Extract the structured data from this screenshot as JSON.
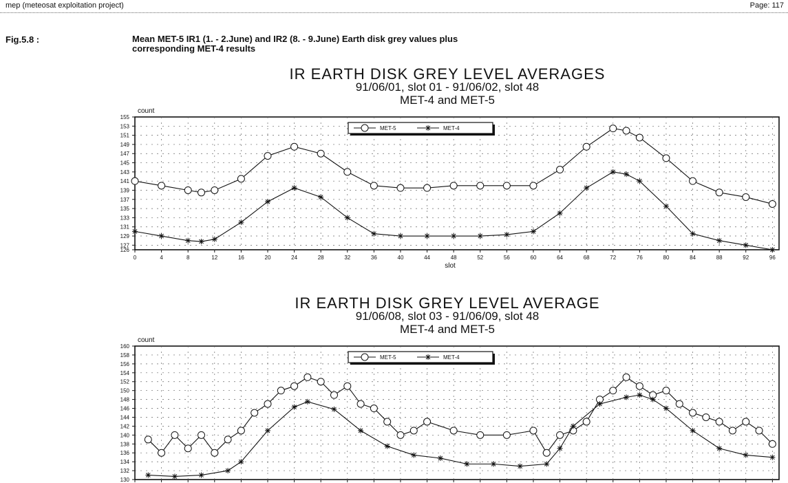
{
  "header": {
    "left": "mep (meteosat exploitation project)",
    "right": "Page: 117"
  },
  "figure": {
    "number": "Fig.5.8 :",
    "caption_line1": "Mean MET-5 IR1 (1. - 2.June) and IR2 (8. - 9.June) Earth disk grey values plus",
    "caption_line2": "corresponding MET-4 results"
  },
  "colors": {
    "ink": "#111111",
    "grid": "#666666"
  },
  "chart_data": [
    {
      "type": "line",
      "title": "IR EARTH DISK GREY LEVEL AVERAGES",
      "subtitle": "91/06/01, slot 01 - 91/06/02, slot 48",
      "subtitle2": "MET-4 and MET-5",
      "ylabel": "count",
      "xlabel": "slot",
      "xlim": [
        0,
        97
      ],
      "ylim": [
        126,
        155
      ],
      "xticks": [
        0,
        4,
        8,
        12,
        16,
        20,
        24,
        28,
        32,
        36,
        40,
        44,
        48,
        52,
        56,
        60,
        64,
        68,
        72,
        76,
        80,
        84,
        88,
        92,
        96
      ],
      "yticks": [
        126,
        127,
        129,
        131,
        133,
        135,
        137,
        139,
        141,
        143,
        145,
        147,
        149,
        151,
        153,
        155
      ],
      "grid": true,
      "legend_position": "top-center",
      "series": [
        {
          "name": "MET-5",
          "marker": "circle",
          "x": [
            0,
            4,
            8,
            10,
            12,
            16,
            20,
            24,
            28,
            32,
            36,
            40,
            44,
            48,
            52,
            56,
            60,
            64,
            68,
            72,
            74,
            76,
            80,
            84,
            88,
            92,
            96
          ],
          "y": [
            141,
            140,
            139,
            138.5,
            139,
            141.5,
            146.5,
            148.5,
            147,
            143,
            140,
            139.5,
            139.5,
            140,
            140,
            140,
            140,
            143.5,
            148.5,
            152.5,
            152,
            150.5,
            146,
            141,
            138.5,
            137.5,
            136
          ]
        },
        {
          "name": "MET-4",
          "marker": "star",
          "x": [
            0,
            4,
            8,
            10,
            12,
            16,
            20,
            24,
            28,
            32,
            36,
            40,
            44,
            48,
            52,
            56,
            60,
            64,
            68,
            72,
            74,
            76,
            80,
            84,
            88,
            92,
            96
          ],
          "y": [
            130,
            129,
            128,
            127.8,
            128.3,
            132,
            136.5,
            139.5,
            137.5,
            133,
            129.5,
            129,
            129,
            129,
            129,
            129.3,
            130,
            134,
            139.5,
            143,
            142.5,
            141,
            135.5,
            129.5,
            128,
            127,
            126
          ]
        }
      ]
    },
    {
      "type": "line",
      "title": "IR EARTH DISK GREY LEVEL AVERAGE",
      "subtitle": "91/06/08, slot 03 - 91/06/09, slot 48",
      "subtitle2": "MET-4 and MET-5",
      "ylabel": "count",
      "xlabel": "",
      "xlim": [
        0,
        97
      ],
      "ylim": [
        130,
        160
      ],
      "yticks": [
        130,
        132,
        134,
        136,
        138,
        140,
        142,
        144,
        146,
        148,
        150,
        152,
        154,
        156,
        158,
        160
      ],
      "grid": true,
      "legend_position": "top-center",
      "series": [
        {
          "name": "MET-5",
          "marker": "circle",
          "x": [
            2,
            4,
            6,
            8,
            10,
            12,
            14,
            16,
            18,
            20,
            22,
            24,
            26,
            28,
            30,
            32,
            34,
            36,
            38,
            40,
            42,
            44,
            48,
            52,
            56,
            60,
            62,
            64,
            66,
            68,
            70,
            72,
            74,
            76,
            78,
            80,
            82,
            84,
            86,
            88,
            90,
            92,
            94,
            96
          ],
          "y": [
            139,
            136,
            140,
            137,
            140,
            136,
            139,
            141,
            145,
            147,
            150,
            151,
            153,
            152,
            149,
            151,
            147,
            146,
            143,
            140,
            141,
            143,
            141,
            140,
            140,
            141,
            136,
            140,
            141,
            143,
            148,
            150,
            153,
            151,
            149,
            150,
            147,
            145,
            144,
            143,
            141,
            143,
            141,
            138
          ]
        },
        {
          "name": "MET-4",
          "marker": "star",
          "x": [
            2,
            6,
            10,
            14,
            16,
            20,
            24,
            26,
            30,
            34,
            38,
            42,
            46,
            50,
            54,
            58,
            62,
            64,
            66,
            70,
            74,
            76,
            78,
            80,
            84,
            88,
            92,
            96
          ],
          "y": [
            131,
            130.7,
            131,
            132,
            134,
            141,
            146.3,
            147.5,
            145.8,
            141,
            137.5,
            135.5,
            134.8,
            133.5,
            133.5,
            133,
            133.5,
            137,
            142,
            147,
            148.5,
            149,
            148,
            146,
            141,
            137,
            135.5,
            135
          ]
        }
      ]
    }
  ]
}
